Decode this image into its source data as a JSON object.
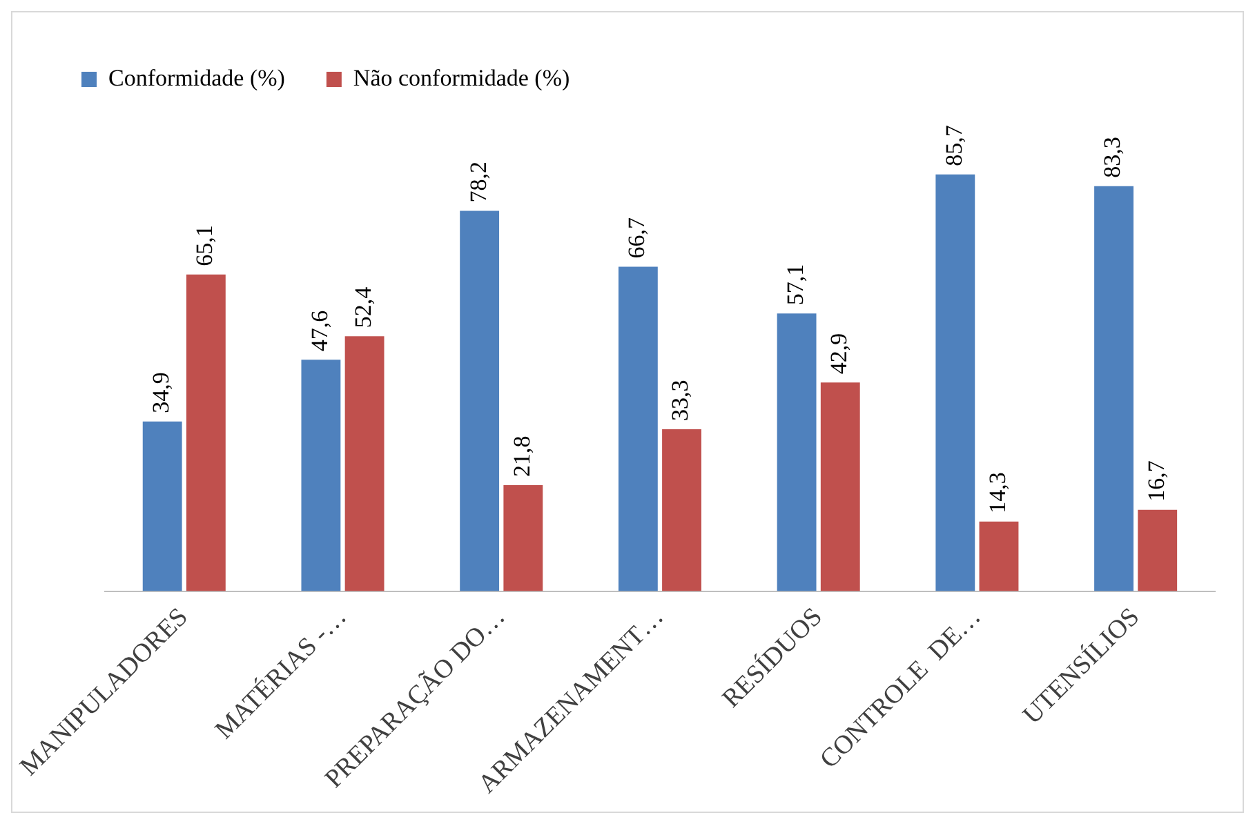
{
  "chart_data": {
    "type": "bar",
    "categories": [
      "MANIPULADORES",
      "MATÉRIAS -…",
      "PREPARAÇÃO DO…",
      "ARMAZENAMENT…",
      "RESÍDUOS",
      "CONTROLE  DE…",
      "UTENSÍLIOS"
    ],
    "series": [
      {
        "name": "Conformidade (%)",
        "color": "#4f81bd",
        "values": [
          34.9,
          47.6,
          78.2,
          66.7,
          57.1,
          85.7,
          83.3
        ],
        "value_labels": [
          "34,9",
          "47,6",
          "78,2",
          "66,7",
          "57,1",
          "85,7",
          "83,3"
        ]
      },
      {
        "name": "Não conformidade (%)",
        "color": "#c0504d",
        "values": [
          65.1,
          52.4,
          21.8,
          33.3,
          42.9,
          14.3,
          16.7
        ],
        "value_labels": [
          "65,1",
          "52,4",
          "21,8",
          "33,3",
          "42,9",
          "14,3",
          "16,7"
        ]
      }
    ],
    "legend": "top left",
    "grid": false
  }
}
